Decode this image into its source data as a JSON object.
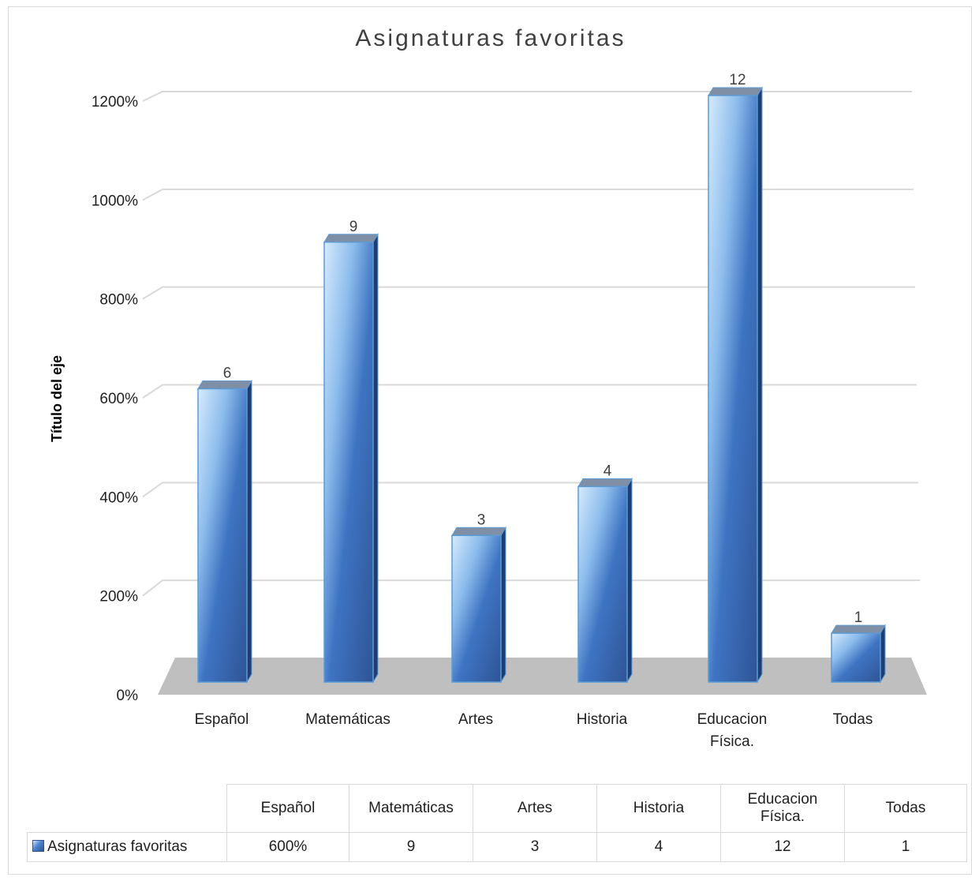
{
  "chart_data": {
    "type": "bar",
    "title": "Asignaturas favoritas",
    "ylabel": "Título del eje",
    "xlabel": "",
    "categories": [
      "Español",
      "Matemáticas",
      "Artes",
      "Historia",
      "Educacion Física.",
      "Todas"
    ],
    "category_lines": [
      [
        "Español"
      ],
      [
        "Matemáticas"
      ],
      [
        "Artes"
      ],
      [
        "Historia"
      ],
      [
        "Educacion",
        "Física."
      ],
      [
        "Todas"
      ]
    ],
    "series": [
      {
        "name": "Asignaturas favoritas",
        "values": [
          6,
          9,
          3,
          4,
          12,
          1
        ],
        "data_labels": [
          "6",
          "9",
          "3",
          "4",
          "12",
          "1"
        ]
      }
    ],
    "y_ticks": [
      "0%",
      "200%",
      "400%",
      "600%",
      "800%",
      "1000%",
      "1200%"
    ],
    "ylim": [
      0,
      12
    ],
    "grid": true,
    "legend": "data-table",
    "bar_color": "#2f5496",
    "bar_highlight": "#cfe6fb",
    "floor_color": "#bfbfbf"
  },
  "table": {
    "headers": [
      "Español",
      "Matemáticas",
      "Artes",
      "Historia",
      "Educacion Física.",
      "Todas"
    ],
    "series_name": "Asignaturas favoritas",
    "values": [
      "600%",
      "9",
      "3",
      "4",
      "12",
      "1"
    ]
  }
}
